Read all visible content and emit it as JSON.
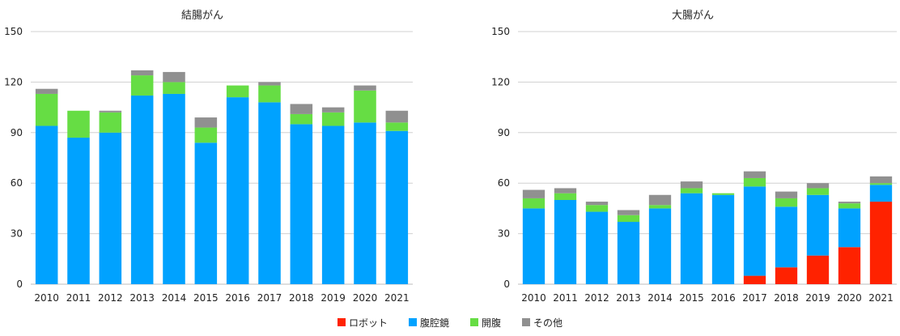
{
  "colors": {
    "robot": "#ff2200",
    "laparoscopic": "#00a2ff",
    "open": "#66dd44",
    "other": "#909090"
  },
  "legend": [
    {
      "key": "robot",
      "label": "ロボット"
    },
    {
      "key": "laparoscopic",
      "label": "腹腔鏡"
    },
    {
      "key": "open",
      "label": "開腹"
    },
    {
      "key": "other",
      "label": "その他"
    }
  ],
  "chart_data": [
    {
      "type": "bar",
      "stacked": true,
      "title": "結腸がん",
      "categories": [
        "2010",
        "2011",
        "2012",
        "2013",
        "2014",
        "2015",
        "2016",
        "2017",
        "2018",
        "2019",
        "2020",
        "2021"
      ],
      "ylim": [
        0,
        150
      ],
      "yticks": [
        0,
        30,
        60,
        90,
        120,
        150
      ],
      "grid": true,
      "series": [
        {
          "name": "ロボット",
          "key": "robot",
          "values": [
            0,
            0,
            0,
            0,
            0,
            0,
            0,
            0,
            0,
            0,
            0,
            0
          ]
        },
        {
          "name": "腹腔鏡",
          "key": "laparoscopic",
          "values": [
            94,
            87,
            90,
            112,
            113,
            84,
            111,
            108,
            95,
            94,
            96,
            91
          ]
        },
        {
          "name": "開腹",
          "key": "open",
          "values": [
            19,
            16,
            12,
            12,
            7,
            9,
            7,
            10,
            6,
            8,
            19,
            5
          ]
        },
        {
          "name": "その他",
          "key": "other",
          "values": [
            3,
            0,
            1,
            3,
            6,
            6,
            0,
            2,
            6,
            3,
            3,
            7
          ]
        }
      ]
    },
    {
      "type": "bar",
      "stacked": true,
      "title": "大腸がん",
      "categories": [
        "2010",
        "2011",
        "2012",
        "2013",
        "2014",
        "2015",
        "2016",
        "2017",
        "2018",
        "2019",
        "2020",
        "2021"
      ],
      "ylim": [
        0,
        150
      ],
      "yticks": [
        0,
        30,
        60,
        90,
        120,
        150
      ],
      "grid": true,
      "series": [
        {
          "name": "ロボット",
          "key": "robot",
          "values": [
            0,
            0,
            0,
            0,
            0,
            0,
            0,
            5,
            10,
            17,
            22,
            49
          ]
        },
        {
          "name": "腹腔鏡",
          "key": "laparoscopic",
          "values": [
            45,
            50,
            43,
            37,
            45,
            54,
            53,
            53,
            36,
            36,
            23,
            10
          ]
        },
        {
          "name": "開腹",
          "key": "open",
          "values": [
            6,
            4,
            4,
            4,
            2,
            3,
            1,
            5,
            5,
            4,
            3,
            1
          ]
        },
        {
          "name": "その他",
          "key": "other",
          "values": [
            5,
            3,
            2,
            3,
            6,
            4,
            0,
            4,
            4,
            3,
            1,
            4
          ]
        }
      ]
    }
  ]
}
